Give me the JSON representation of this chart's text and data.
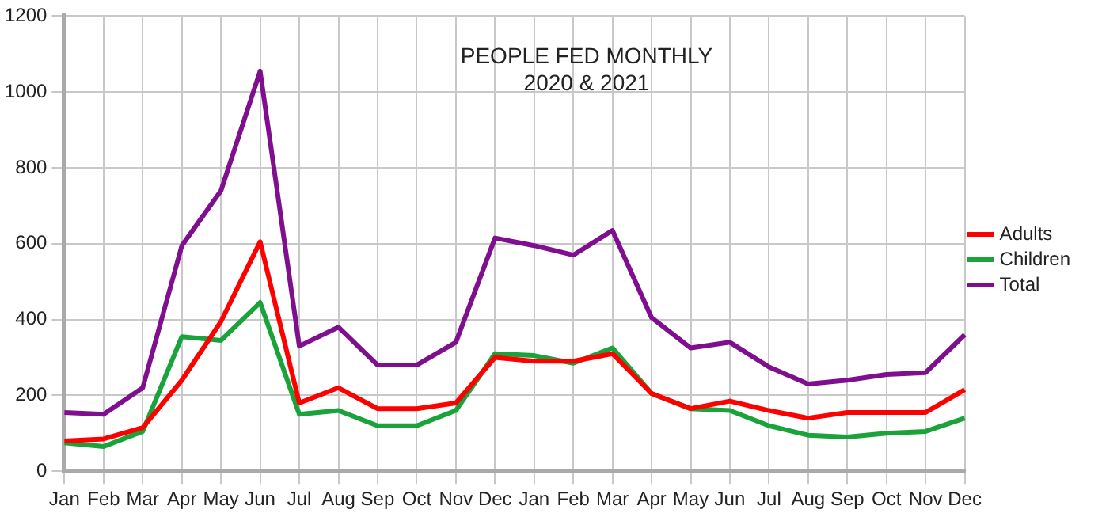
{
  "chart_data": {
    "type": "line",
    "title": "PEOPLE FED MONTHLY",
    "subtitle": "2020 & 2021",
    "categories": [
      "Jan",
      "Feb",
      "Mar",
      "Apr",
      "May",
      "Jun",
      "Jul",
      "Aug",
      "Sep",
      "Oct",
      "Nov",
      "Dec",
      "Jan",
      "Feb",
      "Mar",
      "Apr",
      "May",
      "Jun",
      "Jul",
      "Aug",
      "Sep",
      "Oct",
      "Nov",
      "Dec"
    ],
    "series": [
      {
        "name": "Adults",
        "color": "#ff0000",
        "values": [
          80,
          85,
          115,
          240,
          395,
          605,
          180,
          220,
          165,
          165,
          180,
          300,
          290,
          290,
          310,
          205,
          165,
          185,
          160,
          140,
          155,
          155,
          155,
          215
        ]
      },
      {
        "name": "Children",
        "color": "#1aa33a",
        "values": [
          75,
          65,
          105,
          355,
          345,
          445,
          150,
          160,
          120,
          120,
          160,
          310,
          305,
          285,
          325,
          205,
          165,
          160,
          120,
          95,
          90,
          100,
          105,
          140
        ]
      },
      {
        "name": "Total",
        "color": "#7f0f8f",
        "values": [
          155,
          150,
          220,
          595,
          740,
          1055,
          330,
          380,
          280,
          280,
          340,
          615,
          595,
          570,
          635,
          405,
          325,
          340,
          275,
          230,
          240,
          255,
          260,
          360
        ]
      }
    ],
    "ylim": [
      0,
      1200
    ],
    "yticks": [
      0,
      200,
      400,
      600,
      800,
      1000,
      1200
    ],
    "grid": true,
    "legend": "right",
    "marker": "none",
    "line_style": "solid"
  }
}
